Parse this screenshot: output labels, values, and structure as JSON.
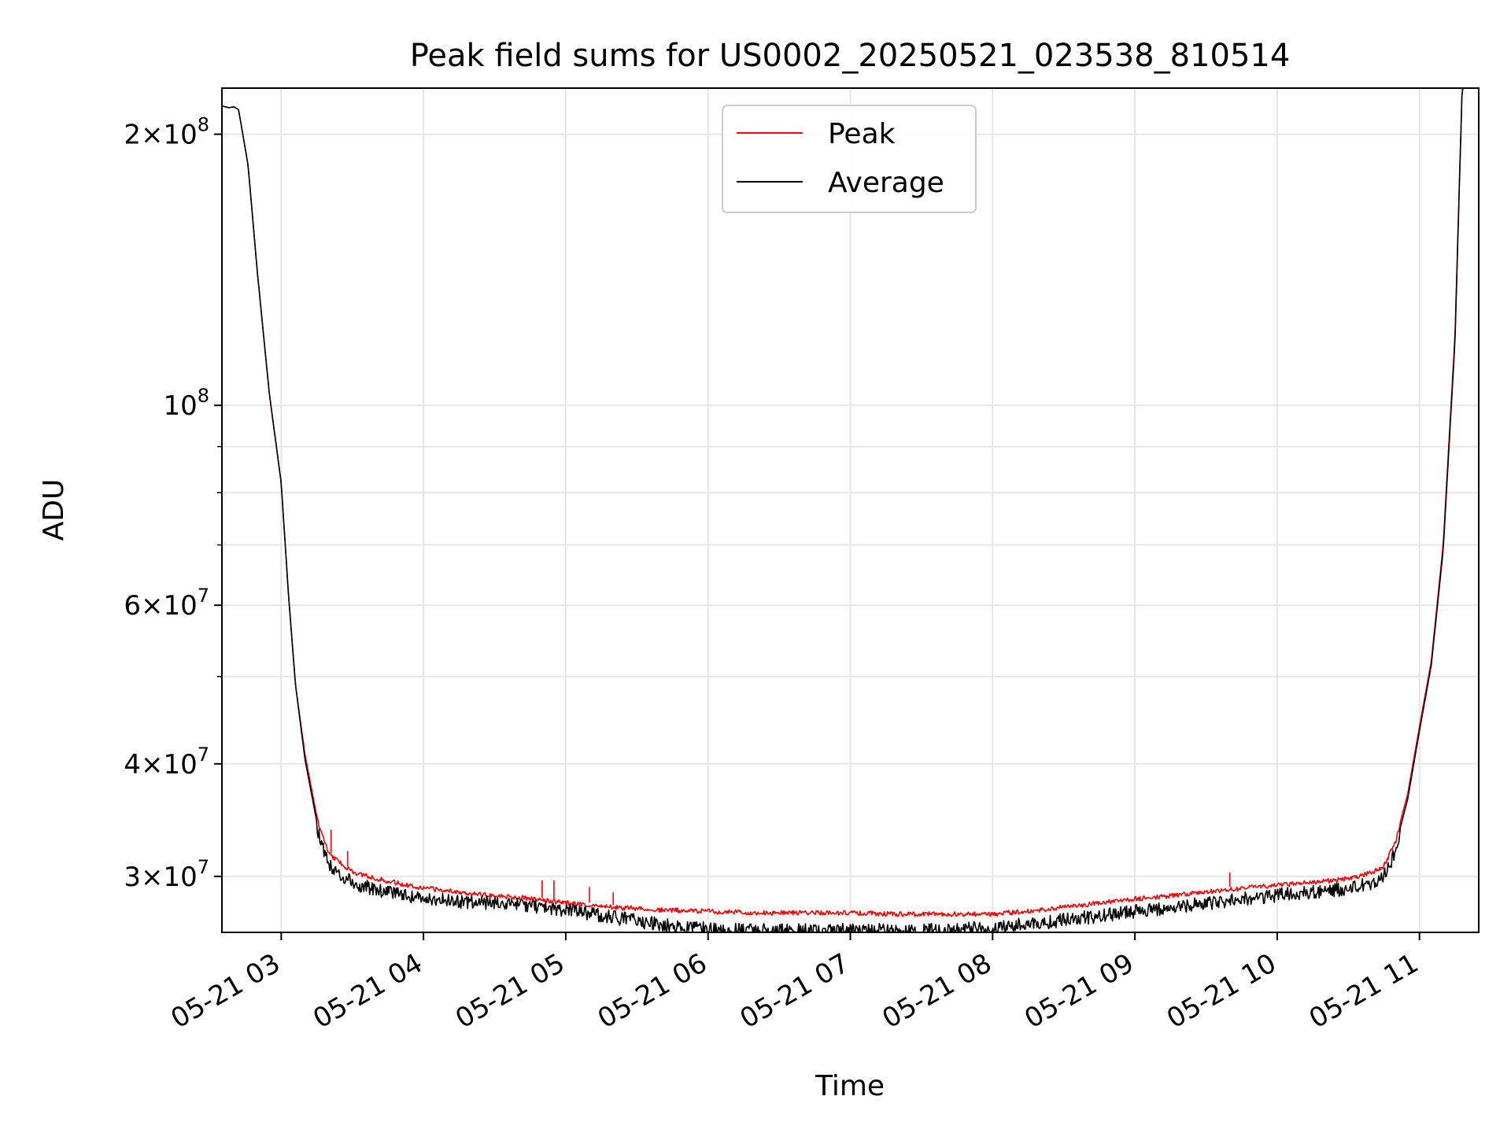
{
  "chart_data": {
    "type": "line",
    "title": "Peak field sums for US0002_20250521_023538_810514",
    "xlabel": "Time",
    "ylabel": "ADU",
    "y_scale": "log",
    "xlim": [
      "2025-05-21 02:35",
      "2025-05-21 11:25"
    ],
    "ylim": [
      26000000,
      225000000
    ],
    "grid": true,
    "legend_position": "top-center",
    "x_ticks": [
      "05-21 03",
      "05-21 04",
      "05-21 05",
      "05-21 06",
      "05-21 07",
      "05-21 08",
      "05-21 09",
      "05-21 10",
      "05-21 11"
    ],
    "y_ticks": [
      {
        "value": 30000000,
        "mantissa": "3",
        "exp": "7"
      },
      {
        "value": 40000000,
        "mantissa": "4",
        "exp": "7"
      },
      {
        "value": 60000000,
        "mantissa": "6",
        "exp": "7"
      },
      {
        "value": 100000000,
        "mantissa": "",
        "exp": "8"
      },
      {
        "value": 200000000,
        "mantissa": "2",
        "exp": "8"
      }
    ],
    "series": [
      {
        "name": "Peak",
        "color": "#ff0000",
        "x": [
          "02:35",
          "02:38",
          "02:40",
          "02:42",
          "02:46",
          "02:50",
          "02:55",
          "03:00",
          "03:03",
          "03:06",
          "03:10",
          "03:15",
          "03:20",
          "03:30",
          "03:45",
          "04:00",
          "04:20",
          "04:40",
          "05:00",
          "05:20",
          "05:40",
          "06:00",
          "06:20",
          "06:40",
          "07:00",
          "07:20",
          "07:40",
          "08:00",
          "08:20",
          "08:40",
          "09:00",
          "09:20",
          "09:40",
          "10:00",
          "10:20",
          "10:30",
          "10:40",
          "10:45",
          "10:50",
          "10:55",
          "11:00",
          "11:05",
          "11:10",
          "11:15",
          "11:18",
          "11:25"
        ],
        "values": [
          215000000,
          214000000,
          214500000,
          213000000,
          185000000,
          140000000,
          103000000,
          82000000,
          62000000,
          49000000,
          41000000,
          35000000,
          32000000,
          30500000,
          29800000,
          29300000,
          28900000,
          28600000,
          28200000,
          27900000,
          27700000,
          27600000,
          27500000,
          27500000,
          27500000,
          27400000,
          27400000,
          27400000,
          27700000,
          28100000,
          28500000,
          28800000,
          29200000,
          29500000,
          29800000,
          30000000,
          30500000,
          31000000,
          33000000,
          37000000,
          44000000,
          52000000,
          70000000,
          120000000,
          225000000,
          225000000
        ],
        "spikes": [
          [
            "03:12",
            38700000
          ],
          [
            "03:21",
            33800000
          ],
          [
            "03:28",
            32000000
          ],
          [
            "04:50",
            29700000
          ],
          [
            "04:55",
            29700000
          ],
          [
            "05:10",
            29200000
          ],
          [
            "05:20",
            28800000
          ],
          [
            "09:40",
            30300000
          ]
        ]
      },
      {
        "name": "Average",
        "color": "#000000",
        "x": [
          "02:35",
          "02:38",
          "02:40",
          "02:42",
          "02:46",
          "02:50",
          "02:55",
          "03:00",
          "03:03",
          "03:06",
          "03:10",
          "03:15",
          "03:20",
          "03:30",
          "03:45",
          "04:00",
          "04:20",
          "04:40",
          "05:00",
          "05:20",
          "05:40",
          "06:00",
          "06:20",
          "06:40",
          "07:00",
          "07:20",
          "07:40",
          "08:00",
          "08:20",
          "08:40",
          "09:00",
          "09:20",
          "09:40",
          "10:00",
          "10:20",
          "10:30",
          "10:40",
          "10:45",
          "10:50",
          "10:55",
          "11:00",
          "11:05",
          "11:10",
          "11:15",
          "11:18",
          "11:25"
        ],
        "values": [
          215000000,
          214000000,
          214500000,
          213000000,
          185000000,
          140000000,
          103000000,
          82000000,
          62000000,
          49000000,
          40500000,
          34500000,
          31500000,
          30000000,
          29300000,
          28900000,
          28600000,
          28400000,
          28000000,
          27500000,
          27000000,
          26700000,
          26600000,
          26600000,
          26600000,
          26600000,
          26600000,
          26800000,
          27100000,
          27500000,
          27900000,
          28300000,
          28700000,
          29100000,
          29400000,
          29600000,
          30000000,
          30600000,
          32500000,
          36500000,
          43500000,
          51500000,
          69000000,
          118000000,
          225000000,
          225000000
        ]
      }
    ]
  }
}
